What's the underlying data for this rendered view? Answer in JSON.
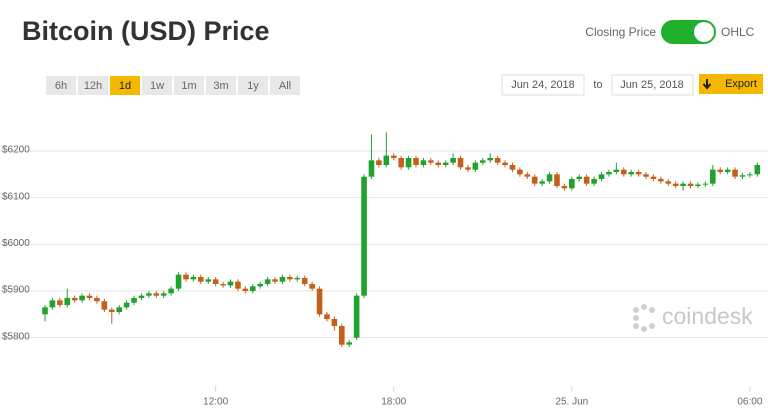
{
  "header": {
    "title": "Bitcoin (USD) Price",
    "toggle_left": "Closing Price",
    "toggle_right": "OHLC"
  },
  "controls": {
    "ranges": [
      {
        "label": "6h",
        "active": false
      },
      {
        "label": "12h",
        "active": false
      },
      {
        "label": "1d",
        "active": true
      },
      {
        "label": "1w",
        "active": false
      },
      {
        "label": "1m",
        "active": false
      },
      {
        "label": "3m",
        "active": false
      },
      {
        "label": "1y",
        "active": false
      },
      {
        "label": "All",
        "active": false
      }
    ],
    "date_from": "Jun 24, 2018",
    "to": "to",
    "date_to": "Jun 25, 2018",
    "export": "Export"
  },
  "watermark": "coindesk",
  "chart_data": {
    "type": "candlestick",
    "up_color": "#1fa22e",
    "down_color": "#c5601c",
    "grid": true,
    "ylim": [
      5720,
      6245
    ],
    "yticks": [
      {
        "value": 5800,
        "label": "$5800"
      },
      {
        "value": 5900,
        "label": "$5900"
      },
      {
        "value": 6000,
        "label": "$6000"
      },
      {
        "value": 6100,
        "label": "$6100"
      },
      {
        "value": 6200,
        "label": "$6200"
      }
    ],
    "categories": [
      null,
      null,
      null,
      null,
      null,
      null,
      null,
      null,
      null,
      null,
      null,
      null,
      null,
      null,
      null,
      null,
      null,
      null,
      null,
      null,
      null,
      null,
      null,
      "12:00",
      null,
      null,
      null,
      null,
      null,
      null,
      null,
      null,
      null,
      null,
      null,
      null,
      null,
      null,
      null,
      null,
      null,
      null,
      null,
      null,
      null,
      null,
      null,
      "18:00",
      null,
      null,
      null,
      null,
      null,
      null,
      null,
      null,
      null,
      null,
      null,
      null,
      null,
      null,
      null,
      null,
      null,
      null,
      null,
      null,
      null,
      null,
      null,
      "25. Jun",
      null,
      null,
      null,
      null,
      null,
      null,
      null,
      null,
      null,
      null,
      null,
      null,
      null,
      null,
      null,
      null,
      null,
      null,
      null,
      null,
      null,
      null,
      null,
      "06:00",
      null
    ],
    "open": [
      5850,
      5865,
      5880,
      5870,
      5885,
      5880,
      5890,
      5885,
      5878,
      5860,
      5855,
      5865,
      5875,
      5885,
      5890,
      5895,
      5890,
      5895,
      5905,
      5935,
      5925,
      5930,
      5920,
      5925,
      5915,
      5912,
      5920,
      5905,
      5900,
      5910,
      5915,
      5925,
      5920,
      5930,
      5925,
      5928,
      5915,
      5905,
      5850,
      5840,
      5825,
      5785,
      5800,
      5890,
      6145,
      6180,
      6170,
      6190,
      6185,
      6165,
      6185,
      6170,
      6180,
      6175,
      6170,
      6175,
      6185,
      6165,
      6160,
      6175,
      6180,
      6185,
      6175,
      6170,
      6160,
      6150,
      6145,
      6130,
      6135,
      6150,
      6125,
      6120,
      6140,
      6145,
      6130,
      6140,
      6150,
      6155,
      6160,
      6150,
      6155,
      6150,
      6145,
      6140,
      6135,
      6130,
      6125,
      6130,
      6125,
      6128,
      6130,
      6160,
      6155,
      6160,
      6145,
      6148,
      6150
    ],
    "high": [
      5870,
      5885,
      5885,
      5905,
      5890,
      5895,
      5895,
      5890,
      5883,
      5865,
      5870,
      5880,
      5890,
      5895,
      5900,
      5900,
      5900,
      5910,
      5940,
      5940,
      5935,
      5935,
      5930,
      5930,
      5920,
      5925,
      5925,
      5910,
      5915,
      5920,
      5930,
      5930,
      5935,
      5935,
      5933,
      5933,
      5920,
      5910,
      5855,
      5845,
      5830,
      5795,
      5895,
      6150,
      6235,
      6185,
      6240,
      6195,
      6190,
      6190,
      6190,
      6185,
      6185,
      6180,
      6180,
      6195,
      6190,
      6170,
      6180,
      6185,
      6195,
      6190,
      6180,
      6175,
      6165,
      6155,
      6150,
      6140,
      6155,
      6155,
      6130,
      6145,
      6150,
      6150,
      6145,
      6155,
      6160,
      6175,
      6165,
      6160,
      6160,
      6155,
      6150,
      6145,
      6140,
      6135,
      6135,
      6135,
      6133,
      6135,
      6170,
      6165,
      6165,
      6165,
      6153,
      6155,
      6175
    ],
    "low": [
      5835,
      5860,
      5865,
      5865,
      5875,
      5875,
      5880,
      5873,
      5855,
      5830,
      5850,
      5860,
      5870,
      5880,
      5885,
      5885,
      5885,
      5890,
      5900,
      5920,
      5920,
      5915,
      5915,
      5910,
      5907,
      5907,
      5900,
      5895,
      5895,
      5905,
      5910,
      5915,
      5915,
      5920,
      5920,
      5910,
      5900,
      5845,
      5835,
      5815,
      5780,
      5780,
      5795,
      5885,
      6140,
      6165,
      6165,
      6180,
      6160,
      6160,
      6165,
      6165,
      6170,
      6165,
      6165,
      6170,
      6160,
      6155,
      6155,
      6170,
      6175,
      6170,
      6165,
      6155,
      6145,
      6140,
      6125,
      6125,
      6130,
      6120,
      6115,
      6115,
      6135,
      6125,
      6125,
      6135,
      6145,
      6150,
      6145,
      6145,
      6145,
      6140,
      6135,
      6130,
      6125,
      6120,
      6115,
      6120,
      6120,
      6123,
      6125,
      6150,
      6150,
      6140,
      6140,
      6143,
      6145
    ],
    "close": [
      5865,
      5880,
      5870,
      5885,
      5880,
      5890,
      5885,
      5878,
      5860,
      5855,
      5865,
      5875,
      5885,
      5890,
      5895,
      5890,
      5895,
      5905,
      5935,
      5925,
      5930,
      5920,
      5925,
      5915,
      5912,
      5920,
      5905,
      5900,
      5910,
      5915,
      5925,
      5920,
      5930,
      5925,
      5928,
      5915,
      5905,
      5850,
      5840,
      5825,
      5785,
      5790,
      5890,
      6145,
      6180,
      6170,
      6190,
      6185,
      6165,
      6185,
      6170,
      6180,
      6175,
      6170,
      6175,
      6185,
      6165,
      6160,
      6175,
      6180,
      6185,
      6175,
      6170,
      6160,
      6150,
      6145,
      6130,
      6135,
      6150,
      6125,
      6120,
      6140,
      6145,
      6130,
      6140,
      6150,
      6155,
      6160,
      6150,
      6155,
      6150,
      6145,
      6140,
      6135,
      6130,
      6125,
      6130,
      6125,
      6128,
      6130,
      6160,
      6155,
      6160,
      6145,
      6148,
      6150,
      6170
    ]
  }
}
